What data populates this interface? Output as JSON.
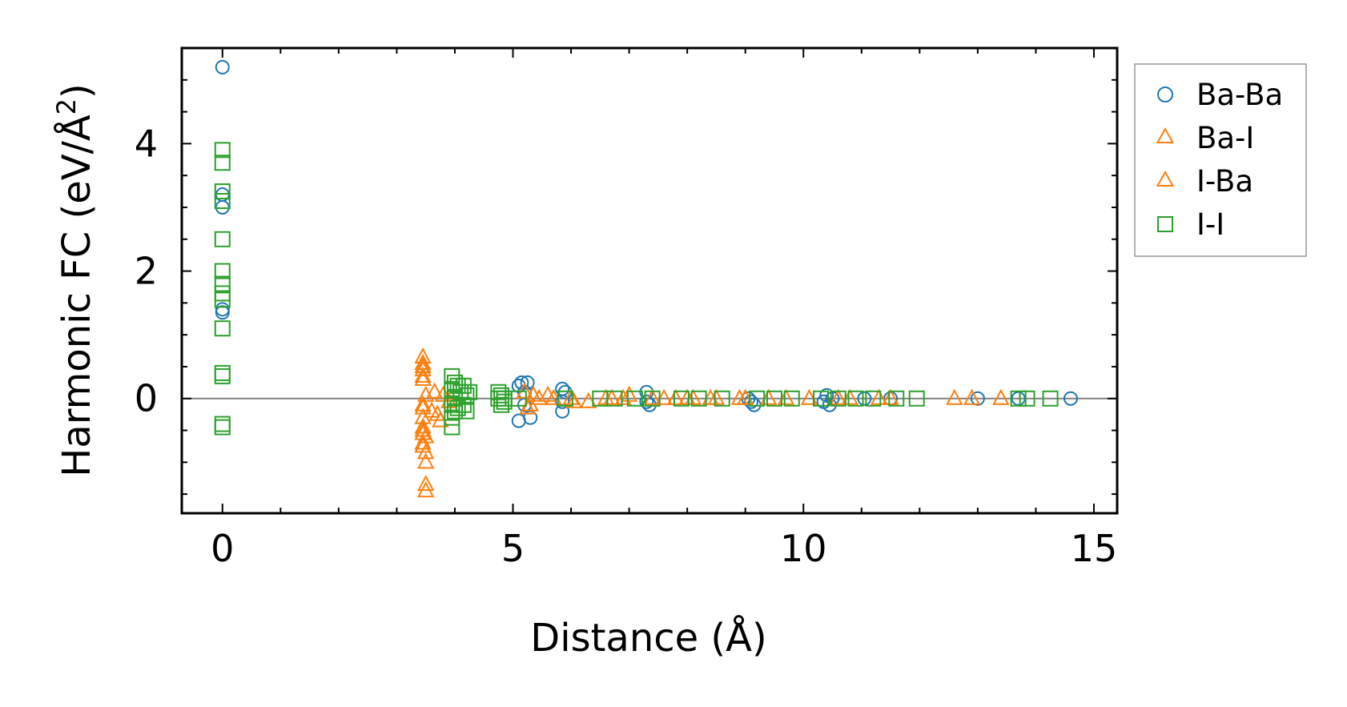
{
  "chart_data": {
    "type": "scatter",
    "xlabel": "Distance (Å)",
    "ylabel": "Harmonic FC (eV/Å",
    "ylabel_superscript": "2",
    "ylabel_suffix": ")",
    "xlim": [
      -0.7,
      15.4
    ],
    "ylim": [
      -1.8,
      5.5
    ],
    "x_ticks": [
      0,
      5,
      10,
      15
    ],
    "x_tick_labels": [
      "0",
      "5",
      "10",
      "15"
    ],
    "y_ticks": [
      0,
      2,
      4
    ],
    "y_tick_labels": [
      "0",
      "2",
      "4"
    ],
    "grid": false,
    "zero_line": true,
    "legend_position": "outside-right",
    "series": [
      {
        "name": "Ba-Ba",
        "marker": "circle",
        "color": "#1f77b4",
        "x": [
          0,
          0,
          0,
          0,
          0,
          5.1,
          5.1,
          5.15,
          5.2,
          5.2,
          5.25,
          5.3,
          5.85,
          5.85,
          5.85,
          5.9,
          7.3,
          7.3,
          7.35,
          9.05,
          9.1,
          9.15,
          10.35,
          10.4,
          10.45,
          10.5,
          11.05,
          11.5,
          13.0,
          13.7,
          14.6
        ],
        "y": [
          5.2,
          3.2,
          3.0,
          1.35,
          1.4,
          0.2,
          -0.35,
          0.25,
          0.1,
          -0.1,
          0.25,
          -0.3,
          0.15,
          -0.05,
          -0.2,
          0.1,
          0.1,
          -0.05,
          -0.1,
          0.0,
          -0.05,
          -0.1,
          -0.05,
          0.05,
          -0.1,
          0.0,
          0.0,
          0.0,
          0.0,
          0.0,
          0.0
        ]
      },
      {
        "name": "Ba-I",
        "marker": "triangle",
        "color": "#ff7f0e",
        "x": [
          3.45,
          3.45,
          3.45,
          3.45,
          3.45,
          3.45,
          3.45,
          3.45,
          3.45,
          3.5,
          3.5,
          3.5,
          3.5,
          3.5,
          3.5,
          3.7,
          3.75,
          3.8,
          5.2,
          5.3,
          5.45,
          5.6,
          6.0,
          6.3,
          6.7,
          7.0,
          7.4,
          7.8,
          8.0,
          8.5,
          9.0,
          9.4,
          10.1,
          10.8,
          11.5,
          12.6,
          13.4
        ],
        "y": [
          0.65,
          0.55,
          0.45,
          0.3,
          -0.1,
          -0.3,
          -0.45,
          -0.55,
          -0.7,
          -0.85,
          -1.0,
          -1.35,
          -1.45,
          -0.6,
          0.05,
          -0.25,
          -0.35,
          0.05,
          0.1,
          -0.1,
          0.0,
          0.05,
          0.0,
          -0.05,
          0.0,
          0.05,
          0.0,
          0.0,
          0.0,
          0.0,
          0.0,
          0.0,
          0.0,
          0.0,
          0.0,
          0.0,
          0.0
        ]
      },
      {
        "name": "I-Ba",
        "marker": "triangle",
        "color": "#ff7f0e",
        "x": [
          3.45,
          3.45,
          3.45,
          3.45,
          3.45,
          3.6,
          3.65,
          3.9,
          5.25,
          5.35,
          5.7,
          6.05,
          6.6,
          6.9,
          7.6,
          8.1,
          8.4,
          8.9,
          9.7,
          10.6,
          11.3,
          12.9
        ],
        "y": [
          0.5,
          0.35,
          -0.15,
          -0.5,
          -0.75,
          -0.2,
          0.1,
          -0.05,
          -0.15,
          0.05,
          0.0,
          -0.05,
          0.0,
          0.0,
          0.0,
          0.0,
          0.0,
          0.0,
          0.0,
          0.0,
          0.0,
          0.0
        ]
      },
      {
        "name": "I-I",
        "marker": "square",
        "color": "#2ca02c",
        "x": [
          0,
          0,
          0,
          0,
          0,
          0,
          0,
          0,
          0,
          0,
          0,
          0,
          0,
          0,
          3.95,
          3.95,
          3.95,
          3.95,
          3.95,
          4.0,
          4.0,
          4.0,
          4.05,
          4.05,
          4.1,
          4.15,
          4.15,
          4.2,
          4.2,
          4.25,
          4.75,
          4.75,
          4.8,
          4.8,
          4.85,
          4.85,
          5.1,
          5.9,
          6.5,
          6.75,
          7.1,
          7.4,
          7.9,
          8.2,
          8.6,
          9.2,
          9.5,
          9.8,
          10.3,
          10.6,
          10.9,
          11.2,
          11.6,
          11.95,
          13.7,
          13.85,
          14.25
        ],
        "y": [
          3.9,
          3.7,
          3.25,
          3.1,
          2.5,
          2.0,
          1.8,
          1.65,
          1.55,
          1.1,
          0.4,
          0.35,
          -0.4,
          -0.45,
          0.35,
          0.15,
          -0.1,
          -0.3,
          -0.45,
          0.25,
          0.0,
          -0.2,
          0.2,
          -0.15,
          0.1,
          0.2,
          -0.1,
          0.05,
          -0.2,
          0.1,
          0.1,
          0.0,
          -0.1,
          0.05,
          -0.05,
          0.0,
          0.0,
          0.0,
          0.0,
          0.0,
          0.0,
          0.0,
          0.0,
          0.0,
          0.0,
          0.0,
          0.0,
          0.0,
          0.0,
          0.0,
          0.0,
          0.0,
          0.0,
          0.0,
          0.0,
          0.0,
          0.0
        ]
      }
    ]
  }
}
